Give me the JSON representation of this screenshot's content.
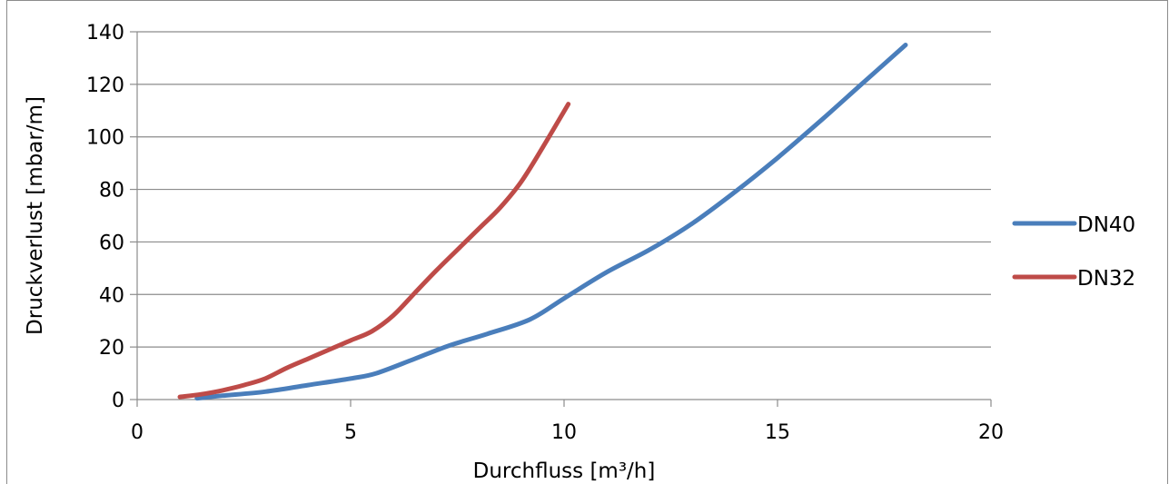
{
  "chart_data": {
    "type": "line",
    "title": "",
    "xlabel": "Durchfluss [m³/h]",
    "ylabel": "Druckverlust [mbar/m]",
    "xlim": [
      0,
      20
    ],
    "ylim": [
      0,
      140
    ],
    "xticks": [
      0,
      5,
      10,
      15,
      20
    ],
    "yticks": [
      0,
      20,
      40,
      60,
      80,
      100,
      120,
      140
    ],
    "grid": "horizontal",
    "legend_position": "right",
    "series": [
      {
        "name": "DN40",
        "color": "#4a7ebb",
        "x": [
          1.4,
          2.0,
          3.0,
          4.0,
          5.0,
          5.6,
          6.5,
          7.3,
          8.2,
          9.2,
          10.0,
          11.0,
          12.0,
          13.0,
          14.0,
          15.0,
          16.0,
          17.0,
          18.0
        ],
        "y": [
          0.5,
          1.5,
          3.0,
          5.5,
          8.0,
          10.0,
          15.5,
          20.5,
          25.0,
          30.5,
          38.5,
          48.5,
          57.0,
          67.0,
          79.0,
          92.0,
          106.0,
          120.5,
          135.0
        ]
      },
      {
        "name": "DN32",
        "color": "#be4b48",
        "x": [
          1.0,
          1.5,
          2.0,
          2.5,
          3.0,
          3.5,
          4.0,
          4.5,
          5.0,
          5.5,
          6.0,
          6.5,
          7.0,
          7.5,
          8.0,
          8.5,
          9.0,
          9.5,
          10.1
        ],
        "y": [
          1.0,
          2.0,
          3.5,
          5.5,
          8.0,
          12.0,
          15.5,
          19.0,
          22.5,
          26.0,
          32.0,
          40.5,
          49.0,
          57.0,
          65.0,
          73.0,
          83.0,
          96.0,
          112.5
        ]
      }
    ]
  }
}
